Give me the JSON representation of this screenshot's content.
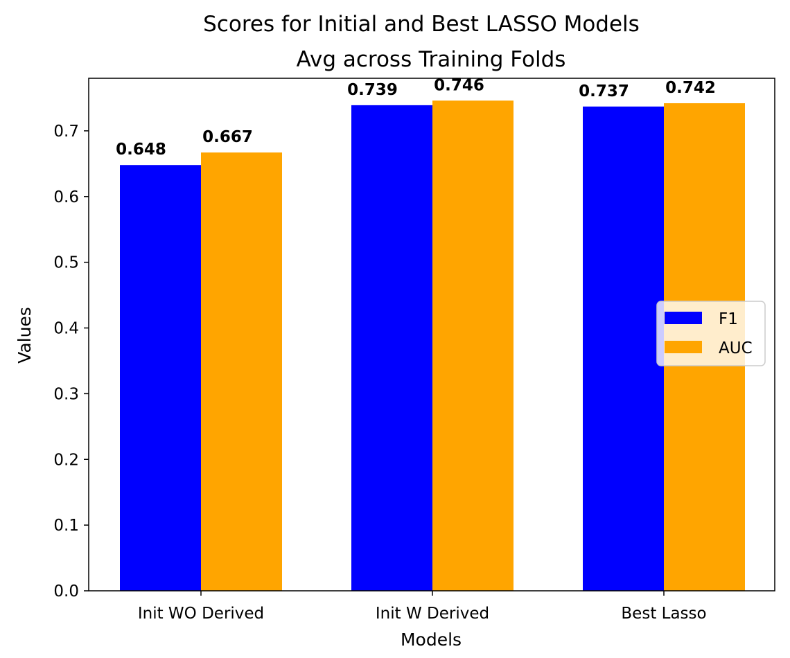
{
  "chart_data": {
    "type": "bar",
    "title": "Scores for Initial and Best LASSO Models",
    "subtitle": "Avg across Training Folds",
    "xlabel": "Models",
    "ylabel": "Values",
    "categories": [
      "Init WO Derived",
      "Init W Derived",
      "Best Lasso"
    ],
    "series": [
      {
        "name": "F1",
        "color": "#0000ff",
        "values": [
          0.648,
          0.739,
          0.737
        ],
        "labels": [
          "0.648",
          "0.739",
          "0.737"
        ]
      },
      {
        "name": "AUC",
        "color": "#ffa500",
        "values": [
          0.667,
          0.746,
          0.742
        ],
        "labels": [
          "0.667",
          "0.746",
          "0.742"
        ]
      }
    ],
    "ylim": [
      0,
      0.78
    ],
    "yticks": [
      0.0,
      0.1,
      0.2,
      0.3,
      0.4,
      0.5,
      0.6,
      0.7
    ],
    "ytick_labels": [
      "0.0",
      "0.1",
      "0.2",
      "0.3",
      "0.4",
      "0.5",
      "0.6",
      "0.7"
    ],
    "grid": false,
    "legend_position": "center-right"
  }
}
